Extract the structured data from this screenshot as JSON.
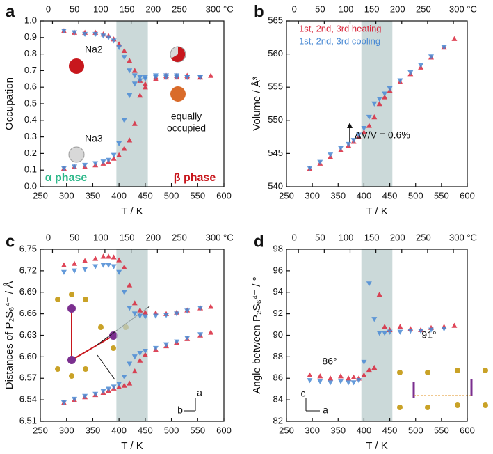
{
  "chart_data": [
    {
      "type": "scatter",
      "panel": "a",
      "ylabel": "Occupation",
      "xlabel": "T / K",
      "xlim": [
        250,
        600
      ],
      "xticks": [
        250,
        300,
        350,
        400,
        450,
        500,
        550,
        600
      ],
      "x2lim": [
        -23.15,
        326.85
      ],
      "x2ticks": [
        0,
        50,
        100,
        150,
        200,
        250,
        {
          "value": 300,
          "label": "300 °C"
        }
      ],
      "ylim": [
        0,
        1
      ],
      "yticks": [
        {
          "value": 0,
          "label": "0.0"
        },
        0.1,
        0.2,
        0.3,
        0.4,
        0.5,
        0.6,
        0.7,
        0.8,
        0.9,
        {
          "value": 1,
          "label": "1.0"
        }
      ],
      "shade": [
        395,
        455
      ],
      "x": [
        295,
        315,
        335,
        355,
        370,
        380,
        390,
        400,
        410,
        420,
        430,
        440,
        450,
        470,
        490,
        510,
        530,
        555,
        575
      ],
      "series": [
        {
          "color": "#d9263b",
          "marker": "up",
          "values": [
            0.94,
            0.93,
            0.93,
            0.93,
            0.92,
            0.91,
            0.89,
            0.86,
            0.82,
            0.76,
            0.7,
            0.64,
            0.62,
            0.66,
            0.67,
            0.67,
            0.67,
            0.66,
            0.67
          ]
        },
        {
          "color": "#4a8ad4",
          "marker": "down",
          "values": [
            0.94,
            0.93,
            0.92,
            0.92,
            0.91,
            0.9,
            0.88,
            0.84,
            0.78,
            0.7,
            0.67,
            0.66,
            0.66,
            0.67,
            0.67,
            0.67,
            0.66,
            0.66,
            null
          ]
        },
        {
          "color": "#d9263b",
          "marker": "up",
          "values": [
            0.11,
            0.12,
            0.12,
            0.13,
            0.14,
            0.15,
            0.17,
            0.19,
            0.23,
            0.28,
            0.38,
            0.55,
            0.6,
            0.65,
            0.66,
            0.66,
            0.66,
            0.66,
            null
          ]
        },
        {
          "color": "#4a8ad4",
          "marker": "down",
          "values": [
            0.11,
            0.12,
            0.13,
            0.14,
            0.15,
            0.16,
            0.19,
            0.26,
            0.4,
            0.55,
            0.62,
            0.64,
            0.65,
            0.66,
            0.66,
            0.66,
            0.66,
            0.66,
            null
          ]
        }
      ],
      "annotations": [
        "Na2",
        "Na3",
        "equally",
        "occupied",
        "α phase",
        "β phase"
      ]
    },
    {
      "type": "scatter",
      "panel": "b",
      "ylabel": "Volume / Å³",
      "xlabel": "T / K",
      "xlim": [
        250,
        600
      ],
      "xticks": [
        250,
        300,
        350,
        400,
        450,
        500,
        550,
        600
      ],
      "x2lim": [
        -23.15,
        326.85
      ],
      "x2ticks": [
        0,
        50,
        100,
        150,
        200,
        250,
        {
          "value": 300,
          "label": "300 °C"
        }
      ],
      "ylim": [
        540,
        565
      ],
      "yticks": [
        540,
        545,
        550,
        555,
        560,
        565
      ],
      "shade": [
        395,
        455
      ],
      "x": [
        295,
        315,
        335,
        355,
        370,
        380,
        390,
        400,
        410,
        420,
        430,
        440,
        450,
        470,
        490,
        510,
        530,
        555,
        575
      ],
      "series": [
        {
          "name": "1st, 2nd, 3rd heating",
          "color": "#d9263b",
          "marker": "up",
          "values": [
            542.7,
            543.5,
            544.5,
            545.5,
            546.2,
            546.8,
            547.5,
            548.2,
            549.2,
            550.5,
            552.5,
            553.5,
            554.5,
            555.8,
            557,
            558,
            559.5,
            561,
            562.3
          ]
        },
        {
          "name": "1st, 2nd, 3rd cooling",
          "color": "#4a8ad4",
          "marker": "down",
          "values": [
            542.8,
            543.7,
            544.8,
            545.8,
            546.4,
            547,
            547.8,
            548.8,
            550.5,
            552.5,
            553.2,
            554,
            554.8,
            556,
            557.2,
            558.3,
            559.6,
            561,
            null
          ]
        }
      ],
      "annotations": [
        "ΔV/V = 0.6%"
      ]
    },
    {
      "type": "scatter",
      "panel": "c",
      "ylabel": "Distances of P₂S₆⁴⁻ / Å",
      "xlabel": "T / K",
      "xlim": [
        250,
        600
      ],
      "xticks": [
        250,
        300,
        350,
        400,
        450,
        500,
        550,
        600
      ],
      "x2lim": [
        -23.15,
        326.85
      ],
      "x2ticks": [
        0,
        50,
        100,
        150,
        200,
        250,
        {
          "value": 300,
          "label": "300 °C"
        }
      ],
      "ylim": [
        6.51,
        6.75
      ],
      "yticks": [
        6.51,
        6.54,
        6.57,
        {
          "value": 6.6,
          "label": "6.60"
        },
        6.63,
        6.66,
        6.69,
        6.72,
        6.75
      ],
      "shade": [
        395,
        455
      ],
      "x": [
        295,
        315,
        335,
        355,
        370,
        380,
        390,
        400,
        410,
        420,
        430,
        440,
        450,
        470,
        490,
        510,
        530,
        555,
        575
      ],
      "series": [
        {
          "color": "#d9263b",
          "marker": "up",
          "values": [
            6.728,
            6.73,
            6.734,
            6.737,
            6.74,
            6.74,
            6.739,
            6.735,
            6.725,
            6.7,
            6.675,
            6.665,
            6.662,
            6.661,
            6.66,
            6.662,
            6.665,
            6.668,
            6.67
          ]
        },
        {
          "color": "#4a8ad4",
          "marker": "down",
          "values": [
            6.718,
            6.72,
            6.722,
            6.726,
            6.728,
            6.728,
            6.726,
            6.718,
            6.69,
            6.668,
            6.66,
            6.657,
            6.656,
            6.657,
            6.658,
            6.66,
            6.664,
            6.668,
            null
          ]
        },
        {
          "color": "#d9263b",
          "marker": "up",
          "values": [
            6.536,
            6.54,
            6.544,
            6.547,
            6.55,
            6.553,
            6.556,
            6.558,
            6.56,
            6.563,
            6.58,
            6.595,
            6.603,
            6.61,
            6.615,
            6.62,
            6.625,
            6.63,
            6.634
          ]
        },
        {
          "color": "#4a8ad4",
          "marker": "down",
          "values": [
            6.536,
            6.541,
            6.545,
            6.548,
            6.552,
            6.555,
            6.558,
            6.562,
            6.572,
            6.59,
            6.6,
            6.605,
            6.608,
            6.612,
            6.617,
            6.621,
            6.626,
            6.631,
            null
          ]
        }
      ],
      "annotations": [
        "a",
        "b"
      ]
    },
    {
      "type": "scatter",
      "panel": "d",
      "ylabel": "Angle between P₂S₆⁴⁻ / °",
      "xlabel": "T / K",
      "xlim": [
        250,
        600
      ],
      "xticks": [
        250,
        300,
        350,
        400,
        450,
        500,
        550,
        600
      ],
      "x2lim": [
        -23.15,
        326.85
      ],
      "x2ticks": [
        0,
        50,
        100,
        150,
        200,
        250,
        {
          "value": 300,
          "label": "300 °C"
        }
      ],
      "ylim": [
        82,
        98
      ],
      "yticks": [
        82,
        84,
        86,
        88,
        90,
        92,
        94,
        96,
        98
      ],
      "shade": [
        395,
        455
      ],
      "x": [
        295,
        315,
        335,
        355,
        370,
        380,
        390,
        400,
        410,
        420,
        430,
        440,
        450,
        470,
        490,
        510,
        530,
        555,
        575
      ],
      "series": [
        {
          "color": "#d9263b",
          "marker": "up",
          "values": [
            86.3,
            86.2,
            86.0,
            86.2,
            86.0,
            86.1,
            86.0,
            86.3,
            86.8,
            87.0,
            93.8,
            90.8,
            90.5,
            90.8,
            90.6,
            90.5,
            90.7,
            90.8,
            90.9
          ]
        },
        {
          "color": "#4a8ad4",
          "marker": "down",
          "values": [
            85.8,
            85.7,
            85.6,
            85.7,
            85.6,
            85.6,
            85.8,
            87.5,
            94.8,
            91.5,
            90.2,
            90.2,
            90.3,
            90.3,
            90.4,
            90.4,
            90.5,
            90.6,
            null
          ]
        }
      ],
      "annotations": [
        "86°",
        "91°",
        "c",
        "a"
      ]
    }
  ]
}
